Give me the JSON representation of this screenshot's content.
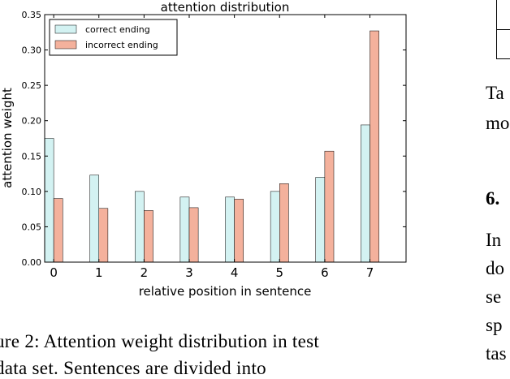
{
  "chart_data": {
    "type": "bar",
    "title": "attention distribution",
    "xlabel": "relative position in sentence",
    "ylabel": "attention weight",
    "categories": [
      "0",
      "1",
      "2",
      "3",
      "4",
      "5",
      "6",
      "7"
    ],
    "series": [
      {
        "name": "correct ending",
        "color": "#d3f2f2",
        "values": [
          0.175,
          0.123,
          0.1,
          0.092,
          0.092,
          0.1,
          0.12,
          0.194
        ]
      },
      {
        "name": "incorrect ending",
        "color": "#f4b19c",
        "values": [
          0.09,
          0.076,
          0.073,
          0.077,
          0.089,
          0.111,
          0.157,
          0.327
        ]
      }
    ],
    "ylim": [
      0,
      0.35
    ],
    "yticks": [
      "0.00",
      "0.05",
      "0.10",
      "0.15",
      "0.20",
      "0.25",
      "0.30",
      "0.35"
    ],
    "legend": "top-left",
    "grid": false
  },
  "caption": {
    "line1": "ure 2:  Attention weight distribution in test",
    "line2": "data set.    Sentences are divided into"
  },
  "side_text": {
    "line1": "Ta",
    "line2": "mo",
    "heading": "6.",
    "line3": "In",
    "line4": "do",
    "line5": "se",
    "line6": "sp",
    "line7": "tas"
  }
}
